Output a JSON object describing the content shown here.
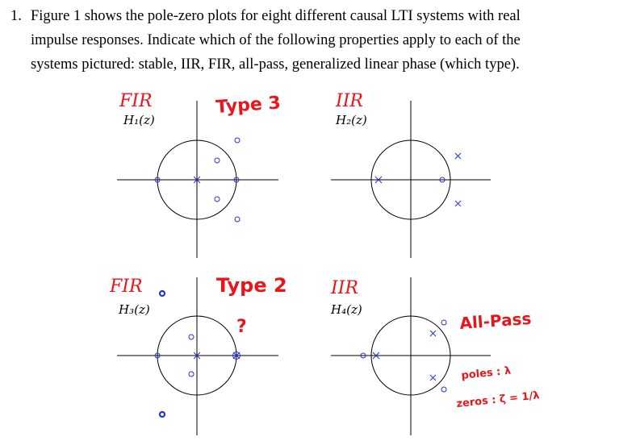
{
  "problem": {
    "number": "1.",
    "lines": [
      "Figure 1 shows the pole-zero plots for eight different causal LTI systems with real",
      "impulse responses. Indicate which of the following properties apply to each of the",
      "systems pictured: stable, IIR, FIR, all-pass, generalized linear phase (which type)."
    ]
  },
  "plots": [
    {
      "label": "H₁(z)",
      "annotation": "FIR",
      "type_note": "Type 3",
      "extra_note": ""
    },
    {
      "label": "H₂(z)",
      "annotation": "IIR",
      "type_note": "",
      "extra_note": ""
    },
    {
      "label": "H₃(z)",
      "annotation": "FIR",
      "type_note": "Type 2",
      "extra_note": "?"
    },
    {
      "label": "H₄(z)",
      "annotation": "IIR",
      "type_note": "All-Pass",
      "extra_note": ""
    }
  ],
  "handnotes": {
    "poles": "poles : λ",
    "zeros": "zeros : ζ = 1/λ"
  },
  "colors": {
    "annotation_red": "#e8161b",
    "marker_blue": "#2233cc",
    "ink": "#000000"
  }
}
